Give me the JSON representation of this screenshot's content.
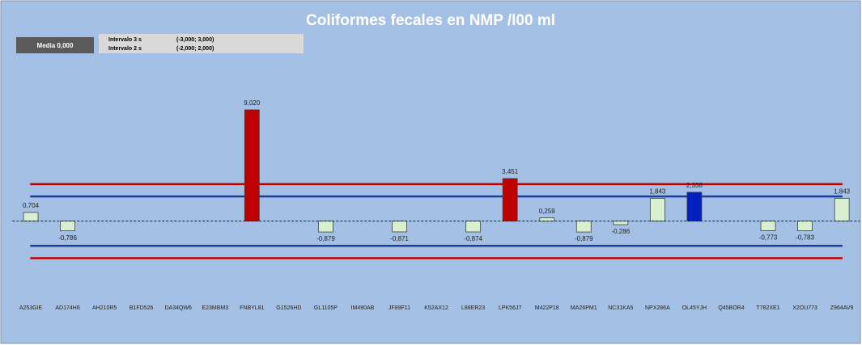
{
  "chart_data": {
    "type": "bar",
    "title": "Coliformes fecales en NMP /l00 ml",
    "media": "Media 0,000",
    "intervals": [
      {
        "label": "Intervalo 3 s",
        "range": "(-3,000; 3,000)"
      },
      {
        "label": "Intervalo 2 s",
        "range": "(-2,000; 2,000)"
      }
    ],
    "categories": [
      "A253GIE",
      "AD174H6",
      "AH210R5",
      "B1FD526",
      "DA34QW6",
      "E23MBM3",
      "FNBYL81",
      "G1526HD",
      "GL1105P",
      "IM490AB",
      "JF89F11",
      "K52AX12",
      "L88ER23",
      "LPK56J7",
      "M422P18",
      "MA26PM1",
      "NC31KA5",
      "NPX286A",
      "OL45YJH",
      "Q45BOR4",
      "T782XE1",
      "X2OU773",
      "Z964AV9"
    ],
    "values": [
      0.704,
      -0.786,
      null,
      null,
      null,
      null,
      9.02,
      null,
      -0.879,
      null,
      -0.871,
      null,
      -0.874,
      3.451,
      0.259,
      -0.879,
      -0.286,
      1.843,
      2.338,
      null,
      -0.773,
      -0.783,
      1.843
    ],
    "value_labels": [
      "0,704",
      "-0,786",
      null,
      null,
      null,
      null,
      "9,020",
      null,
      "-0,879",
      null,
      "-0,871",
      null,
      "-0,874",
      "3,451",
      "0,259",
      "-0,879",
      "-0,286",
      "1,843",
      "2,338",
      null,
      "-0,773",
      "-0,783",
      "1,843"
    ],
    "colors": [
      "#d8f0cf",
      "#d8f0cf",
      null,
      null,
      null,
      null,
      "#c00000",
      null,
      "#d8f0cf",
      null,
      "#d8f0cf",
      null,
      "#d8f0cf",
      "#c00000",
      "#d8f0cf",
      "#d8f0cf",
      "#d8f0cf",
      "#d8f0cf",
      "#0020c0",
      null,
      "#d8f0cf",
      "#d8f0cf",
      "#d8f0cf"
    ],
    "reference_lines": [
      {
        "value": 3,
        "color": "#c00000"
      },
      {
        "value": 2,
        "color": "#1f3f99"
      },
      {
        "value": -2,
        "color": "#1f3f99"
      },
      {
        "value": -3,
        "color": "#c00000"
      }
    ],
    "ylim": [
      -5,
      10
    ]
  }
}
